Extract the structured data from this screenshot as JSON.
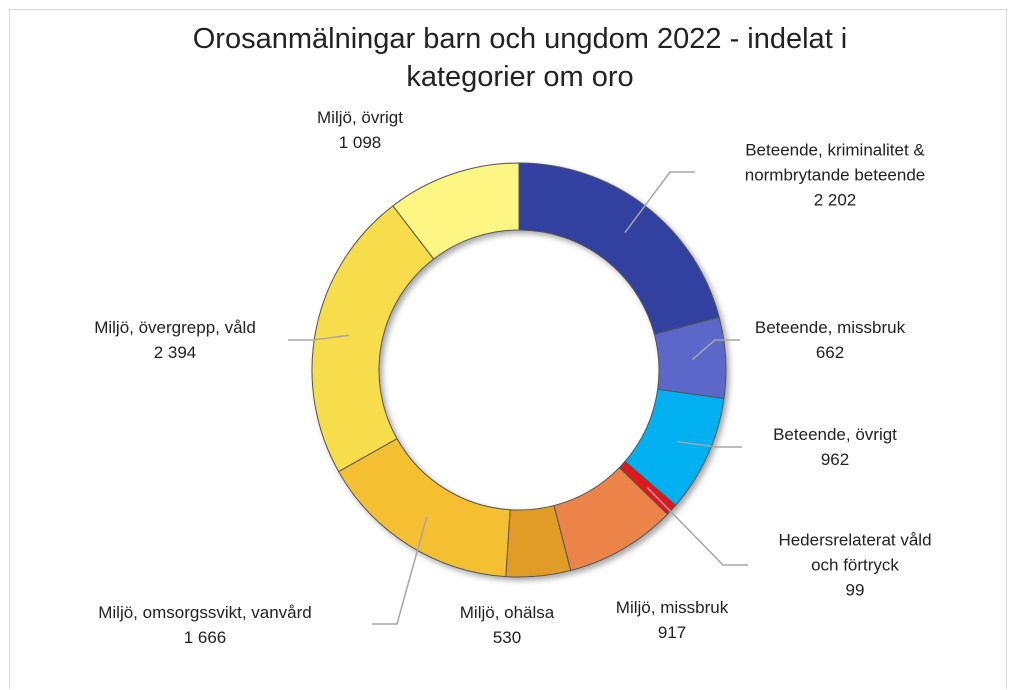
{
  "chart_data": {
    "type": "donut",
    "title": "Orosanmälningar barn och ungdom 2022 - indelat i kategorier om oro",
    "categories": [
      "Beteende, kriminalitet & normbrytande beteende",
      "Beteende, missbruk",
      "Beteende, övrigt",
      "Hedersrelaterat våld och förtryck",
      "Miljö, missbruk",
      "Miljö, ohälsa",
      "Miljö, omsorgssvikt, vanvård",
      "Miljö, övergrepp, våld",
      "Miljö, övrigt"
    ],
    "values": [
      2202,
      662,
      962,
      99,
      917,
      530,
      1666,
      2394,
      1098
    ],
    "value_labels": [
      "2 202",
      "662",
      "962",
      "99",
      "917",
      "530",
      "1 666",
      "2 394",
      "1 098"
    ],
    "colors": [
      "#33409f",
      "#5c67c9",
      "#00b0f0",
      "#e3141b",
      "#ec834a",
      "#e09c25",
      "#f4c033",
      "#f7dd4c",
      "#fdf682"
    ]
  }
}
